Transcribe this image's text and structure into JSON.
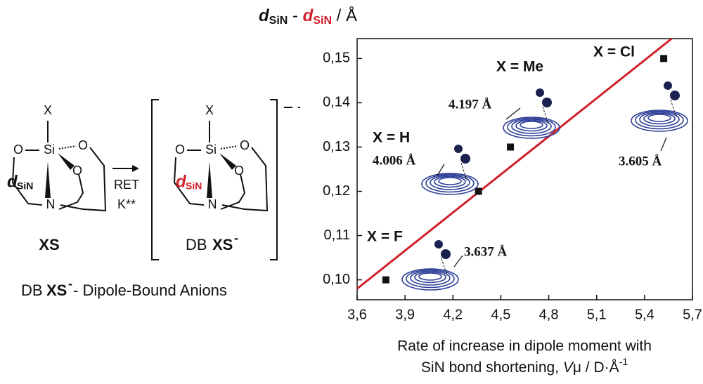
{
  "chart_data": {
    "type": "scatter",
    "y_label": {
      "d1": "d",
      "sub1": "SiN",
      "sep": " - ",
      "d2": "d",
      "sub2": "SiN",
      "unit": " / Å"
    },
    "x_label": {
      "line1": "Rate of increase in dipole moment with",
      "line2a": "SiN bond shortening, ",
      "v": "V",
      "line2b": "μ / D·Å",
      "sup": "-1"
    },
    "x": [
      3.78,
      4.36,
      4.56,
      5.52
    ],
    "values": [
      0.1,
      0.12,
      0.13,
      0.15
    ],
    "color": "#111111",
    "fit_line": {
      "x": [
        3.6,
        5.57
      ],
      "values": [
        0.098,
        0.1545
      ],
      "color": "#d0202a"
    },
    "xlim": [
      3.6,
      5.7
    ],
    "ylim": [
      0.0955,
      0.1545
    ],
    "xticks": [
      {
        "value": 3.6,
        "label": "3,6"
      },
      {
        "value": 3.9,
        "label": "3,9"
      },
      {
        "value": 4.2,
        "label": "4,2"
      },
      {
        "value": 4.5,
        "label": "4,5"
      },
      {
        "value": 4.8,
        "label": "4,8"
      },
      {
        "value": 5.1,
        "label": "5,1"
      },
      {
        "value": 5.4,
        "label": "5,4"
      },
      {
        "value": 5.7,
        "label": "5,7"
      }
    ],
    "yticks": [
      {
        "value": 0.1,
        "label": "0,10"
      },
      {
        "value": 0.11,
        "label": "0,11"
      },
      {
        "value": 0.12,
        "label": "0,12"
      },
      {
        "value": 0.13,
        "label": "0,13"
      },
      {
        "value": 0.14,
        "label": "0,14"
      },
      {
        "value": 0.15,
        "label": "0,15"
      }
    ],
    "annotations": [
      "X = F",
      "X = H",
      "X = Me",
      "X = Cl"
    ],
    "distances": [
      "3.637 Å",
      "4.006 Å",
      "4.197 Å",
      "3.605 Å"
    ]
  },
  "scheme": {
    "x": "X",
    "o": "O",
    "si": "Si",
    "n": "N",
    "d": "d",
    "sub": "SiN",
    "xs": "XS",
    "ret": "RET",
    "k": "K**",
    "db": "DB",
    "minus": "-",
    "caption": "- Dipole-Bound Anions"
  }
}
